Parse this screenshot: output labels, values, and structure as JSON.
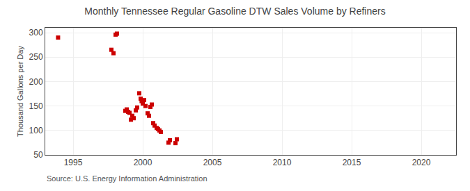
{
  "chart_data": {
    "type": "scatter",
    "title": "Monthly Tennessee Regular Gasoline DTW Sales Volume by Refiners",
    "ylabel": "Thousand Gallons per Day",
    "annotations": [
      "Source: U.S. Energy Information Administration"
    ],
    "x": [
      1993.92,
      1997.75,
      1997.9,
      1998.05,
      1998.15,
      1998.75,
      1998.85,
      1998.95,
      1999.05,
      1999.15,
      1999.25,
      1999.35,
      1999.5,
      1999.6,
      1999.75,
      1999.85,
      1999.92,
      2000.0,
      2000.1,
      2000.2,
      2000.35,
      2000.45,
      2000.55,
      2000.65,
      2000.75,
      2000.85,
      2001.0,
      2001.1,
      2001.2,
      2001.3,
      2001.85,
      2001.95,
      2002.35,
      2002.45
    ],
    "values": [
      290,
      265,
      258,
      296,
      298,
      140,
      143,
      138,
      136,
      122,
      130,
      125,
      141,
      147,
      176,
      165,
      160,
      155,
      162,
      150,
      135,
      130,
      148,
      153,
      115,
      110,
      105,
      103,
      100,
      97,
      75,
      80,
      74,
      82
    ],
    "color": "#cc0000",
    "marker": "square",
    "xlim": [
      1993.0,
      2022.5
    ],
    "ylim": [
      50,
      310
    ],
    "xticks": [
      1995,
      2000,
      2005,
      2010,
      2015,
      2020
    ],
    "yticks": [
      50,
      100,
      150,
      200,
      250,
      300
    ],
    "grid": true
  }
}
